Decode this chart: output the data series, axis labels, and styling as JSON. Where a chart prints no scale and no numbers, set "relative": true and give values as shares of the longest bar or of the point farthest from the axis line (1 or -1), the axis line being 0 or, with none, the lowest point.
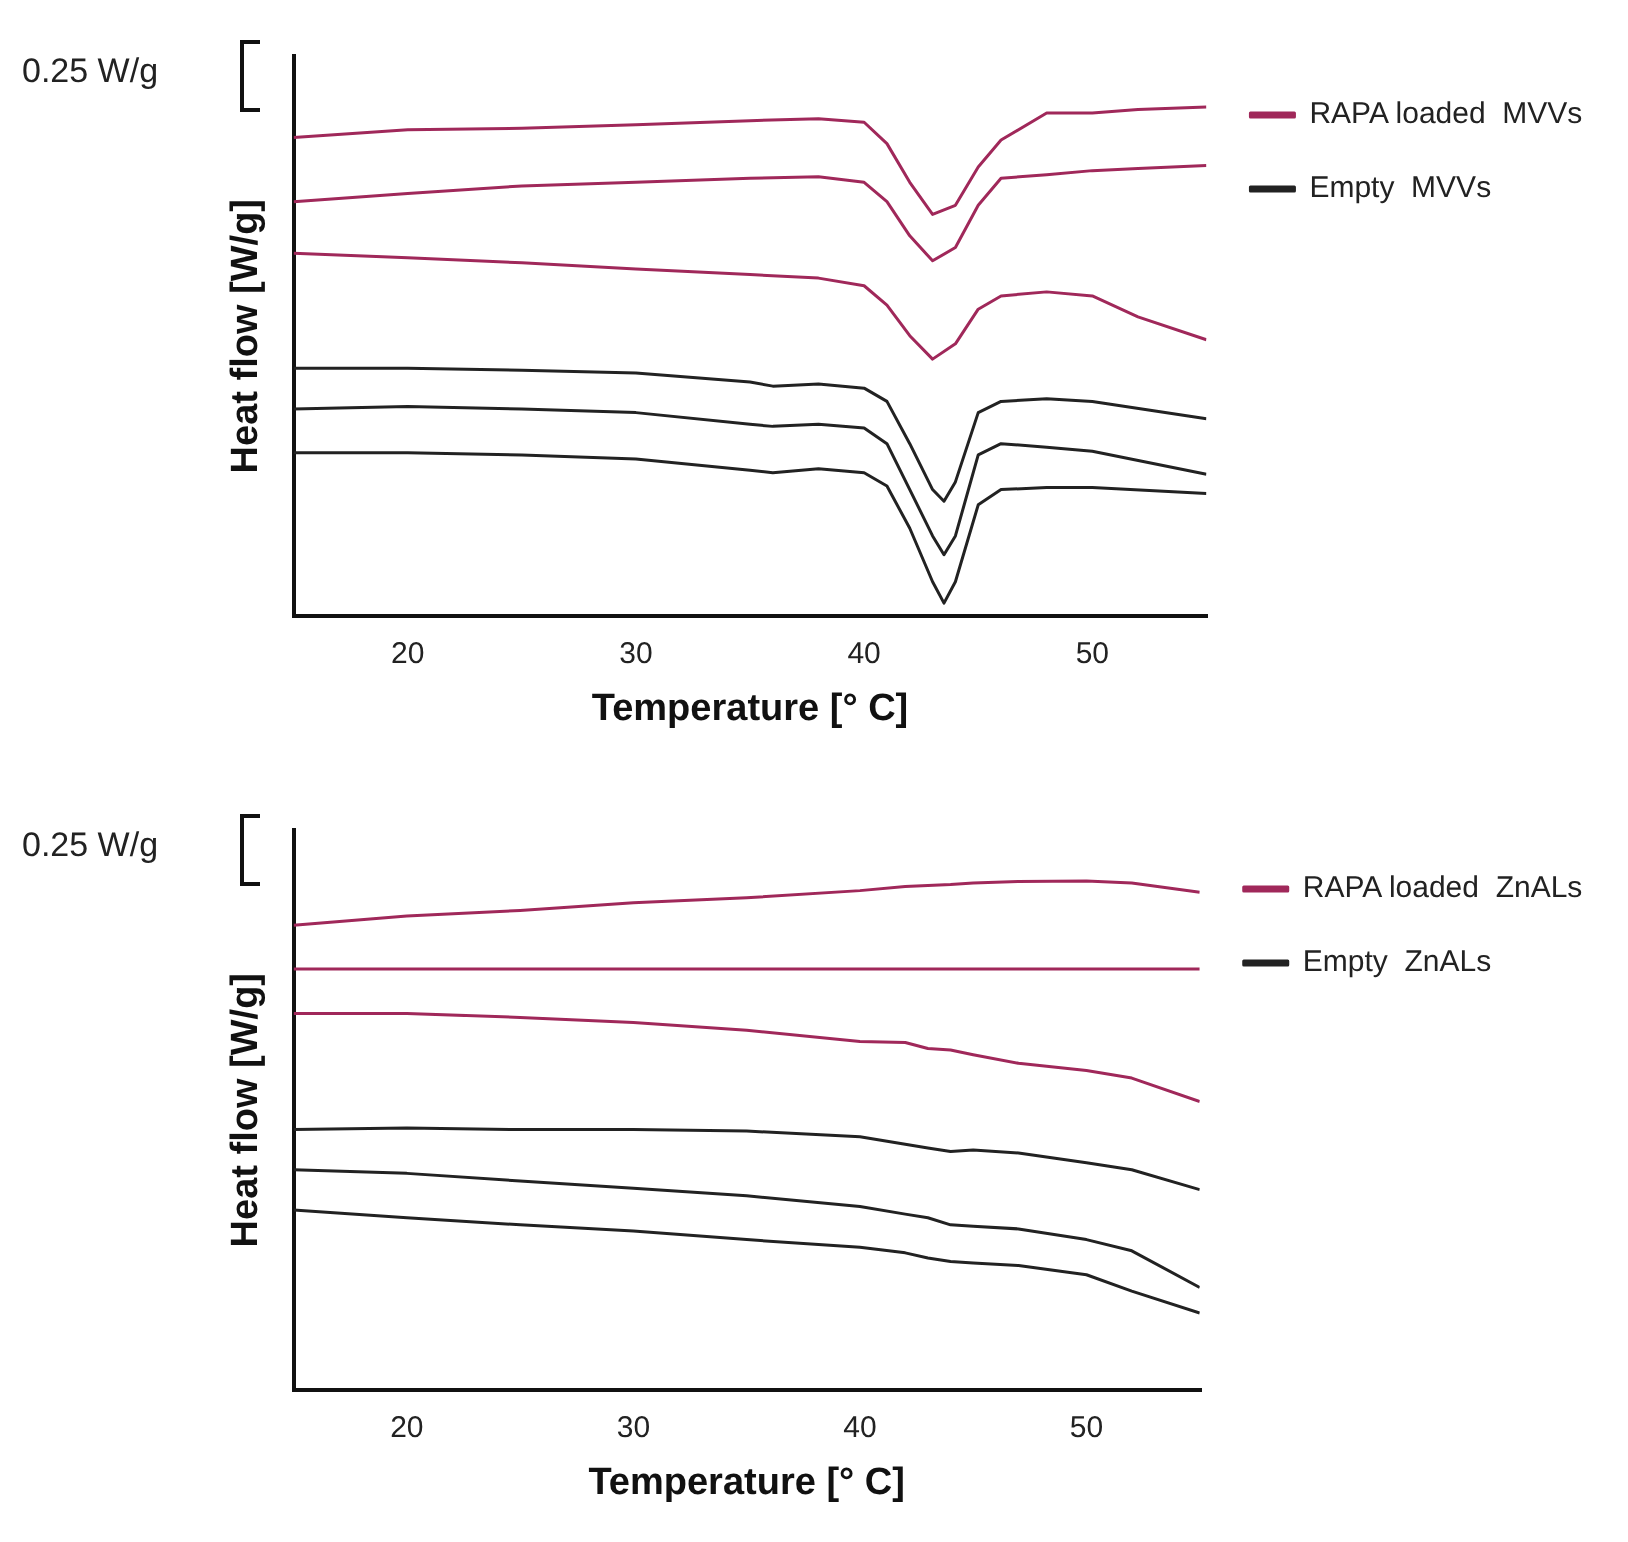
{
  "chart_data": [
    {
      "type": "line",
      "relative": true,
      "xlabel": "Temperature [° C]",
      "ylabel": "Heat flow [W/g]",
      "annotations": [
        "0.25 W/g"
      ],
      "xlim": [
        15,
        55
      ],
      "xticks": [
        20,
        30,
        40,
        50
      ],
      "legend": "top right",
      "marker": "none",
      "line_style": "solid",
      "series": [
        {
          "name": "RAPA loaded  MVVs",
          "color": "#a0285a",
          "x": [
            15,
            20,
            25,
            30,
            35,
            38,
            40,
            41,
            42,
            43,
            44,
            45,
            46,
            48,
            50,
            52,
            55
          ],
          "values": [
            0.94,
            0.955,
            0.958,
            0.965,
            0.973,
            0.977,
            0.97,
            0.928,
            0.852,
            0.789,
            0.807,
            0.882,
            0.935,
            0.988,
            0.988,
            0.995,
            1.0
          ]
        },
        {
          "color": "#a0285a",
          "x": [
            15,
            20,
            25,
            30,
            35,
            38,
            40,
            41,
            42,
            43,
            44,
            45,
            46,
            48,
            50,
            52,
            55
          ],
          "values": [
            0.814,
            0.83,
            0.845,
            0.852,
            0.86,
            0.863,
            0.852,
            0.814,
            0.747,
            0.698,
            0.724,
            0.807,
            0.86,
            0.867,
            0.875,
            0.879,
            0.885
          ]
        },
        {
          "color": "#a0285a",
          "x": [
            15,
            20,
            25,
            30,
            35,
            38,
            40,
            41,
            42,
            43,
            44,
            45,
            46,
            48,
            50,
            52,
            55
          ],
          "values": [
            0.713,
            0.704,
            0.694,
            0.682,
            0.671,
            0.664,
            0.649,
            0.611,
            0.551,
            0.505,
            0.535,
            0.603,
            0.629,
            0.637,
            0.629,
            0.588,
            0.543
          ]
        },
        {
          "name": "Empty  MVVs",
          "color": "#222222",
          "x": [
            15,
            20,
            25,
            30,
            35,
            36,
            38,
            40,
            41,
            42,
            43,
            43.5,
            44,
            45,
            46,
            48,
            50,
            55
          ],
          "values": [
            0.487,
            0.487,
            0.483,
            0.478,
            0.46,
            0.452,
            0.456,
            0.448,
            0.422,
            0.339,
            0.249,
            0.226,
            0.264,
            0.4,
            0.422,
            0.427,
            0.422,
            0.388
          ]
        },
        {
          "color": "#222222",
          "x": [
            15,
            20,
            25,
            30,
            35,
            36,
            38,
            40,
            41,
            42,
            43,
            43.5,
            44,
            45,
            46,
            48,
            50,
            55
          ],
          "values": [
            0.407,
            0.412,
            0.407,
            0.4,
            0.377,
            0.373,
            0.377,
            0.37,
            0.339,
            0.249,
            0.158,
            0.121,
            0.158,
            0.317,
            0.339,
            0.332,
            0.324,
            0.279
          ]
        },
        {
          "color": "#222222",
          "x": [
            15,
            20,
            25,
            30,
            35,
            36,
            38,
            40,
            41,
            42,
            43,
            43.5,
            44,
            45,
            46,
            48,
            50,
            55
          ],
          "values": [
            0.321,
            0.321,
            0.317,
            0.309,
            0.287,
            0.282,
            0.29,
            0.282,
            0.256,
            0.173,
            0.068,
            0.026,
            0.068,
            0.219,
            0.249,
            0.253,
            0.253,
            0.241
          ]
        }
      ]
    },
    {
      "type": "line",
      "relative": true,
      "xlabel": "Temperature [° C]",
      "ylabel": "Heat flow [W/g]",
      "annotations": [
        "0.25 W/g"
      ],
      "xlim": [
        15,
        55
      ],
      "xticks": [
        20,
        30,
        40,
        50
      ],
      "legend": "top right",
      "marker": "none",
      "line_style": "solid",
      "x": [
        15,
        20,
        25,
        30,
        35,
        40,
        42,
        43,
        44,
        45,
        47,
        50,
        52,
        55
      ],
      "series": [
        {
          "name": "RAPA loaded  ZnALs",
          "color": "#a0285a",
          "values": [
            0.913,
            0.931,
            0.942,
            0.957,
            0.967,
            0.981,
            0.989,
            0.991,
            0.993,
            0.996,
            0.999,
            1.0,
            0.996,
            0.978
          ]
        },
        {
          "color": "#a0285a",
          "values": [
            0.827,
            0.827,
            0.827,
            0.827,
            0.827,
            0.827,
            0.827,
            0.827,
            0.827,
            0.827,
            0.827,
            0.827,
            0.827,
            0.827
          ]
        },
        {
          "color": "#a0285a",
          "values": [
            0.74,
            0.74,
            0.732,
            0.722,
            0.707,
            0.685,
            0.683,
            0.671,
            0.668,
            0.659,
            0.642,
            0.628,
            0.613,
            0.567
          ]
        },
        {
          "name": "Empty  ZnALs",
          "color": "#222222",
          "values": [
            0.512,
            0.515,
            0.512,
            0.512,
            0.509,
            0.498,
            0.483,
            0.476,
            0.469,
            0.472,
            0.466,
            0.447,
            0.433,
            0.394
          ]
        },
        {
          "color": "#222222",
          "values": [
            0.433,
            0.426,
            0.411,
            0.397,
            0.382,
            0.361,
            0.346,
            0.339,
            0.325,
            0.322,
            0.317,
            0.296,
            0.274,
            0.202
          ]
        },
        {
          "color": "#222222",
          "values": [
            0.354,
            0.339,
            0.325,
            0.313,
            0.296,
            0.281,
            0.27,
            0.26,
            0.253,
            0.25,
            0.245,
            0.227,
            0.195,
            0.152
          ]
        }
      ]
    }
  ]
}
